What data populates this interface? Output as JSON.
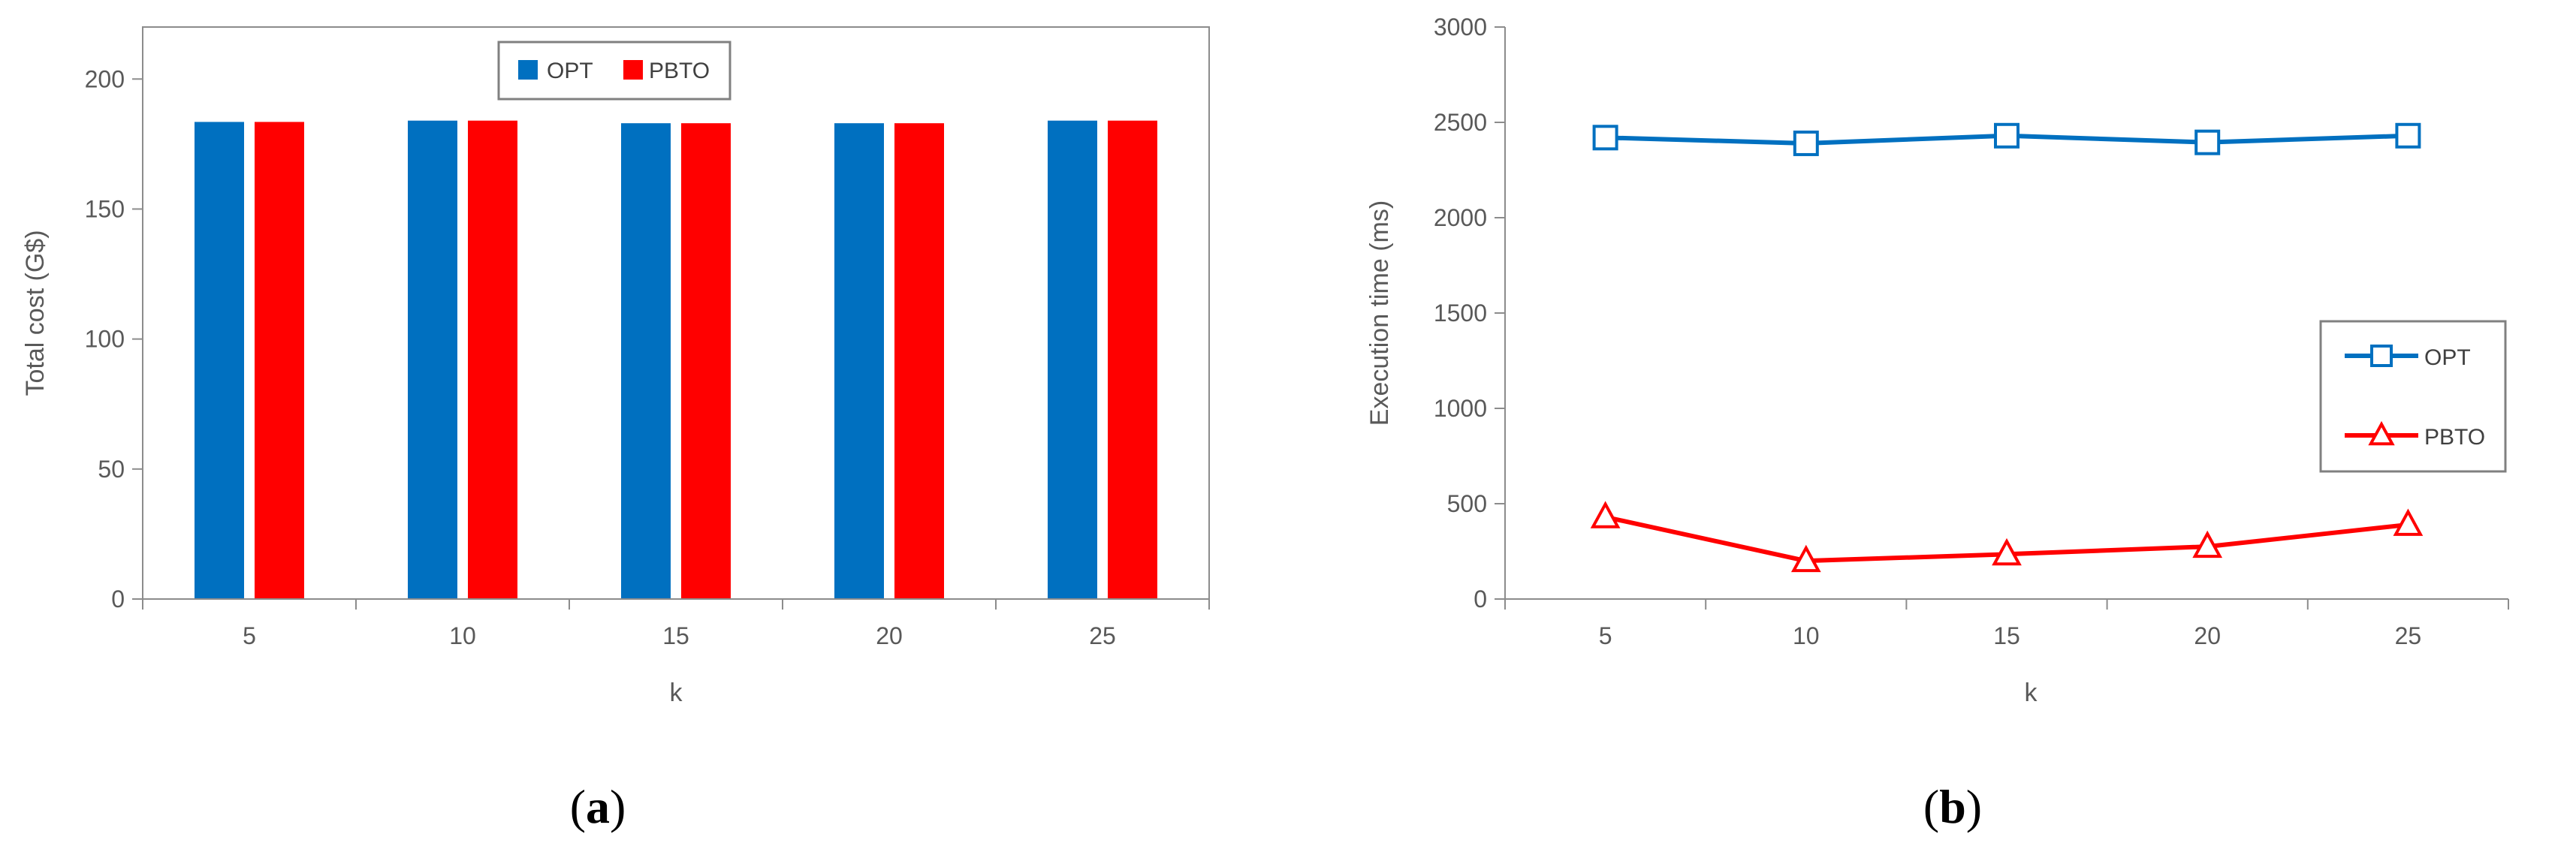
{
  "chart_data": [
    {
      "type": "bar",
      "caption": "(a)",
      "caption_letter": "a",
      "categories": [
        "5",
        "10",
        "15",
        "20",
        "25"
      ],
      "series": [
        {
          "name": "OPT",
          "values": [
            183.5,
            184.0,
            183.0,
            183.0,
            184.0
          ],
          "color": "#0070C0"
        },
        {
          "name": "PBTO",
          "values": [
            183.5,
            184.0,
            183.0,
            183.0,
            184.0
          ],
          "color": "#FF0000"
        }
      ],
      "xlabel": "k",
      "ylabel": "Total cost (G$)",
      "ylim": [
        0,
        220
      ],
      "yticks": [
        0,
        50,
        100,
        150,
        200
      ],
      "grid": false,
      "legend_position": "top-center"
    },
    {
      "type": "line",
      "caption": "(b)",
      "caption_letter": "b",
      "categories": [
        "5",
        "10",
        "15",
        "20",
        "25"
      ],
      "series": [
        {
          "name": "OPT",
          "values": [
            2420,
            2390,
            2430,
            2395,
            2430
          ],
          "color": "#0070C0",
          "marker": "square"
        },
        {
          "name": "PBTO",
          "values": [
            430,
            200,
            235,
            275,
            390
          ],
          "color": "#FF0000",
          "marker": "triangle"
        }
      ],
      "xlabel": "k",
      "ylabel": "Execution time (ms)",
      "ylim": [
        0,
        3000
      ],
      "yticks": [
        0,
        500,
        1000,
        1500,
        2000,
        2500,
        3000
      ],
      "grid": false,
      "legend_position": "right"
    }
  ]
}
